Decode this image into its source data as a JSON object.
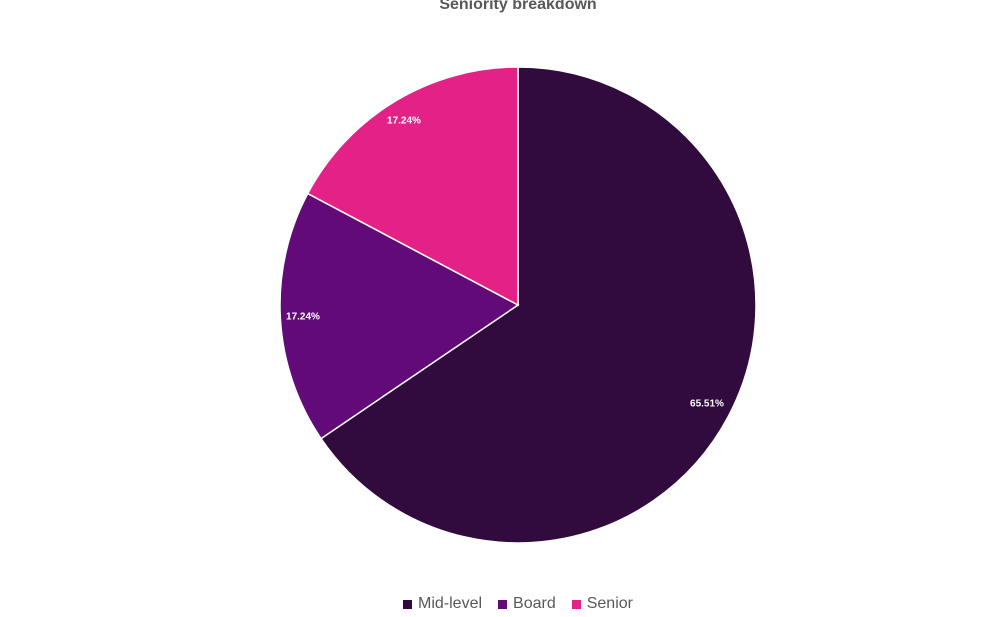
{
  "chart_data": {
    "type": "pie",
    "title": "Seniority breakdown",
    "slices": [
      {
        "name": "Mid-level",
        "value": 65.51,
        "label": "65.51%",
        "color": "#320b3e"
      },
      {
        "name": "Board",
        "value": 17.24,
        "label": "17.24%",
        "color": "#620b78"
      },
      {
        "name": "Senior",
        "value": 17.24,
        "label": "17.24%",
        "color": "#e42186"
      }
    ],
    "legend_position": "bottom"
  }
}
